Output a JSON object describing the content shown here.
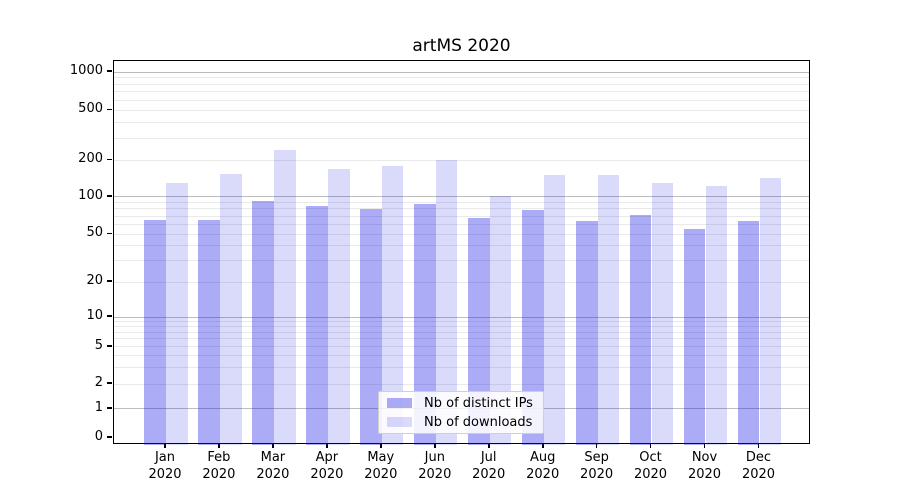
{
  "window": {
    "background": "#ffffff"
  },
  "chart_data": {
    "type": "bar",
    "title": "artMS 2020",
    "categories": [
      "Jan 2020",
      "Feb 2020",
      "Mar 2020",
      "Apr 2020",
      "May 2020",
      "Jun 2020",
      "Jul 2020",
      "Aug 2020",
      "Sep 2020",
      "Oct 2020",
      "Nov 2020",
      "Dec 2020"
    ],
    "x_tick_months": [
      "Jan",
      "Feb",
      "Mar",
      "Apr",
      "May",
      "Jun",
      "Jul",
      "Aug",
      "Sep",
      "Oct",
      "Nov",
      "Dec"
    ],
    "x_tick_year": "2020",
    "series": [
      {
        "name": "Nb of distinct IPs",
        "fill": "rgba(25,25,230,0.36)",
        "values": [
          65,
          65,
          92,
          85,
          80,
          87,
          67,
          79,
          64,
          72,
          55,
          64
        ]
      },
      {
        "name": "Nb of downloads",
        "fill": "rgba(25,25,230,0.16)",
        "values": [
          130,
          153,
          240,
          170,
          180,
          200,
          101,
          150,
          150,
          130,
          122,
          142
        ]
      }
    ],
    "yscale": "symlog",
    "ylim": [
      0,
      1500
    ],
    "yticks": [
      "0",
      "1",
      "2",
      "5",
      "10",
      "20",
      "50",
      "100",
      "200",
      "500",
      "1000"
    ],
    "major_gridlines": [
      1,
      10,
      100,
      1000
    ],
    "minor_gridlines": [
      2,
      3,
      4,
      5,
      6,
      7,
      8,
      9,
      20,
      30,
      40,
      50,
      60,
      70,
      80,
      90,
      200,
      300,
      400,
      500,
      600,
      700,
      800,
      900
    ],
    "grid": true,
    "legend_position": "lower-center",
    "colors": {
      "bar_dark": "#acacf6",
      "bar_light": "#dadafb",
      "grid_major": "#bcbcbc",
      "grid_minor": "#e9e9e9",
      "text": "#000000"
    }
  }
}
